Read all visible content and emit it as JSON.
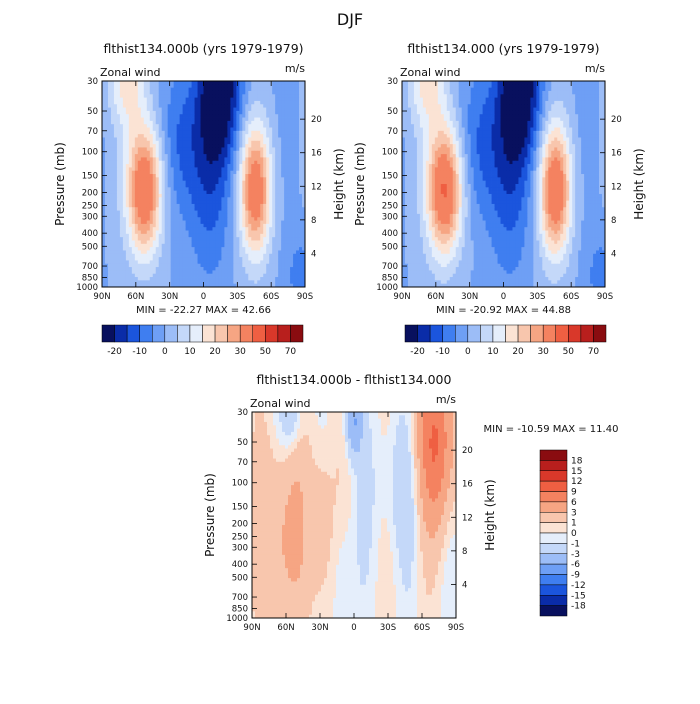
{
  "page_title": "DJF",
  "colors": {
    "neg": [
      "#08105e",
      "#0a2ca8",
      "#1b55dd",
      "#3f7ef0",
      "#6e9ff5",
      "#9cbdf7",
      "#c4d8f9",
      "#e5eefb"
    ],
    "pos": [
      "#fbe3d4",
      "#f8c6ad",
      "#f6a583",
      "#f48260",
      "#ef5f42",
      "#d9382a",
      "#b81f1d",
      "#8a0c10"
    ],
    "diff_neg": [
      "#08105e",
      "#0a2ca8",
      "#1b55dd",
      "#3f7ef0",
      "#6e9ff5",
      "#9cbdf7",
      "#c4d8f9",
      "#e5eefb"
    ],
    "diff_pos": [
      "#fbe3d4",
      "#f8c6ad",
      "#f6a583",
      "#f48260",
      "#ef5f42",
      "#d9382a",
      "#b81f1d",
      "#8a0c10"
    ]
  },
  "chart_data": [
    {
      "type": "heatmap",
      "title": "flthist134.000b (yrs 1979-1979)",
      "left_label": "Zonal wind",
      "right_label": "m/s",
      "ylabel": "Pressure (mb)",
      "y2label": "Height (km)",
      "x_ticks": [
        "90N",
        "60N",
        "30N",
        "0",
        "30S",
        "60S",
        "90S"
      ],
      "y_ticks": [
        "30",
        "50",
        "70",
        "100",
        "150",
        "200",
        "250",
        "300",
        "400",
        "500",
        "700",
        "850",
        "1000"
      ],
      "y2_ticks": [
        "20",
        "16",
        "12",
        "8",
        "4"
      ],
      "stats": "MIN = -22.27   MAX = 42.66",
      "colorbar_labels": [
        "-20",
        "-10",
        "0",
        "10",
        "20",
        "30",
        "50",
        "70"
      ],
      "features": [
        {
          "lat": 50,
          "p": 200,
          "value": 40
        },
        {
          "lat": -47,
          "p": 200,
          "value": 35
        },
        {
          "lat": 65,
          "p": 30,
          "value": 15
        },
        {
          "lat": -15,
          "p": 30,
          "value": -22
        },
        {
          "lat": -5,
          "p": 300,
          "value": -12
        }
      ]
    },
    {
      "type": "heatmap",
      "title": "flthist134.000 (yrs 1979-1979)",
      "left_label": "Zonal wind",
      "right_label": "m/s",
      "ylabel": "Pressure (mb)",
      "y2label": "Height (km)",
      "x_ticks": [
        "90N",
        "60N",
        "30N",
        "0",
        "30S",
        "60S",
        "90S"
      ],
      "y_ticks": [
        "30",
        "50",
        "70",
        "100",
        "150",
        "200",
        "250",
        "300",
        "400",
        "500",
        "700",
        "850",
        "1000"
      ],
      "y2_ticks": [
        "20",
        "16",
        "12",
        "8",
        "4"
      ],
      "stats": "MIN = -20.92   MAX = 44.88",
      "colorbar_labels": [
        "-20",
        "-10",
        "0",
        "10",
        "20",
        "30",
        "50",
        "70"
      ],
      "features": [
        {
          "lat": 52,
          "p": 200,
          "value": 42
        },
        {
          "lat": -45,
          "p": 200,
          "value": 37
        },
        {
          "lat": 62,
          "p": 30,
          "value": 14
        },
        {
          "lat": -15,
          "p": 30,
          "value": -20
        },
        {
          "lat": -5,
          "p": 300,
          "value": -12
        }
      ]
    },
    {
      "type": "heatmap",
      "title": "flthist134.000b - flthist134.000",
      "left_label": "Zonal wind",
      "right_label": "m/s",
      "ylabel": "Pressure (mb)",
      "y2label": "Height (km)",
      "x_ticks": [
        "90N",
        "60N",
        "30N",
        "0",
        "30S",
        "60S",
        "90S"
      ],
      "y_ticks": [
        "30",
        "50",
        "70",
        "100",
        "150",
        "200",
        "250",
        "300",
        "400",
        "500",
        "700",
        "850",
        "1000"
      ],
      "y2_ticks": [
        "20",
        "16",
        "12",
        "8",
        "4"
      ],
      "stats": "MIN = -10.59   MAX =  11.40",
      "colorbar_labels": [
        "18",
        "15",
        "12",
        "9",
        "6",
        "3",
        "1",
        "0",
        "-1",
        "-3",
        "-6",
        "-9",
        "-12",
        "-15",
        "-18"
      ],
      "features": [
        {
          "lat": -72,
          "p": 100,
          "value": 9
        },
        {
          "lat": 62,
          "p": 300,
          "value": 4
        },
        {
          "lat": 0,
          "p": 40,
          "value": -6
        },
        {
          "lat": 55,
          "p": 40,
          "value": -3
        },
        {
          "lat": -40,
          "p": 80,
          "value": -2
        }
      ]
    }
  ]
}
